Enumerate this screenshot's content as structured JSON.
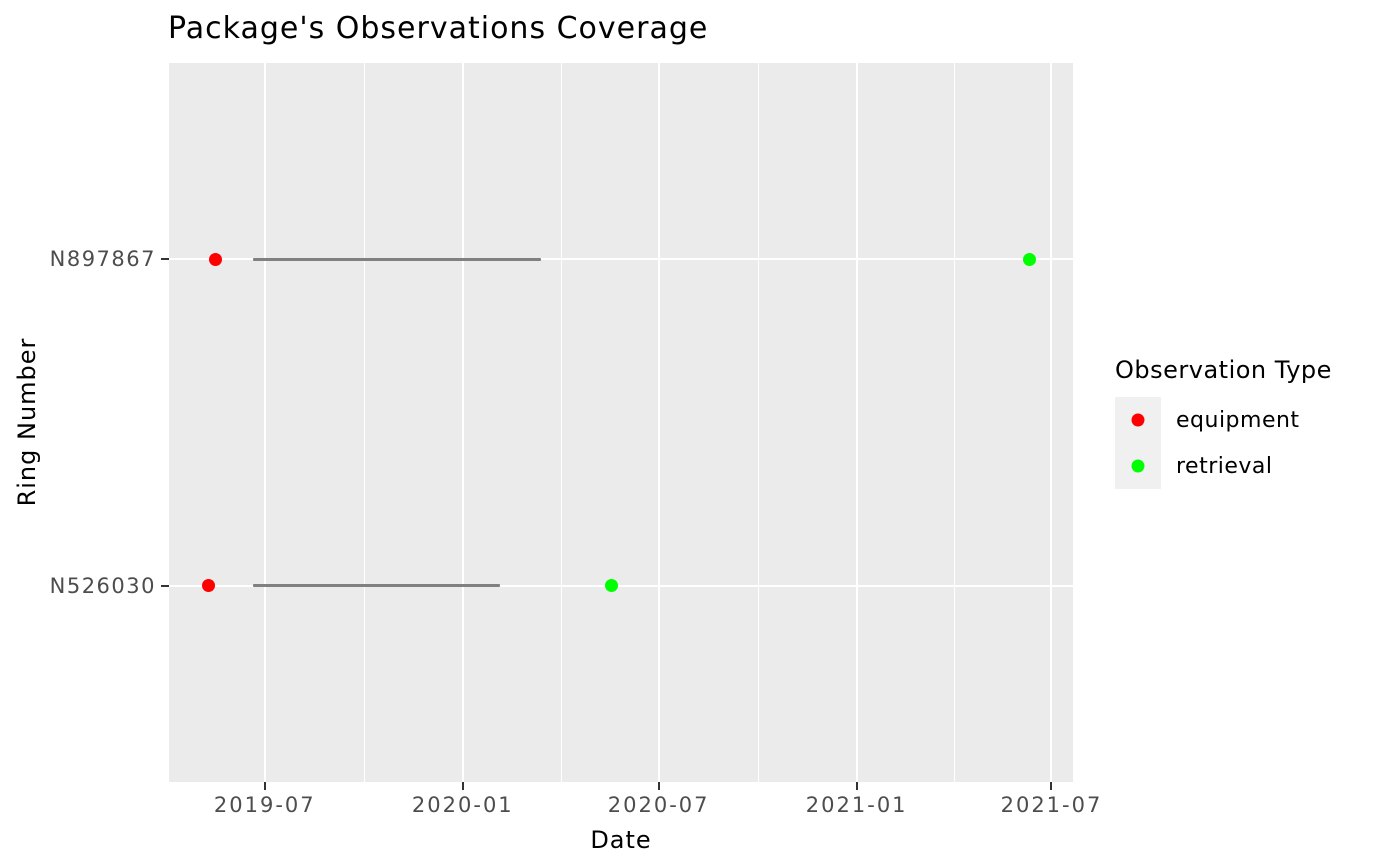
{
  "title": "Package's Observations Coverage",
  "x_axis": {
    "label": "Date"
  },
  "y_axis": {
    "label": "Ring Number"
  },
  "legend": {
    "title": "Observation Type",
    "items": [
      {
        "label": "equipment",
        "color": "#FF0000"
      },
      {
        "label": "retrieval",
        "color": "#00FF00"
      }
    ]
  },
  "colors": {
    "panel_background": "#EBEBEB",
    "gridline": "#FFFFFF",
    "tick_mark": "#333333",
    "tick_label": "#4D4D4D",
    "coverage_segment": "#808080",
    "equipment_point": "#FF0000",
    "retrieval_point": "#00FF00",
    "legend_key_background": "#F0F0F0"
  },
  "chart_data": {
    "type": "scatter",
    "title": "Package's Observations Coverage",
    "xlabel": "Date",
    "ylabel": "Ring Number",
    "categories": [
      "N897867",
      "N526030"
    ],
    "x_ticks": [
      {
        "label": "2019-07",
        "date": "2019-07-01"
      },
      {
        "label": "2020-01",
        "date": "2020-01-01"
      },
      {
        "label": "2020-07",
        "date": "2020-07-01"
      },
      {
        "label": "2021-01",
        "date": "2021-01-01"
      },
      {
        "label": "2021-07",
        "date": "2021-07-01"
      }
    ],
    "x_minor_gridlines": [
      "2019-10-01",
      "2020-04-01",
      "2020-10-01",
      "2021-04-01"
    ],
    "x_range": [
      "2019-04-03",
      "2021-07-21"
    ],
    "series": [
      {
        "name": "equipment",
        "color": "#FF0000",
        "points": [
          {
            "ring": "N897867",
            "date": "2019-05-16"
          },
          {
            "ring": "N526030",
            "date": "2019-05-10"
          }
        ]
      },
      {
        "name": "retrieval",
        "color": "#00FF00",
        "points": [
          {
            "ring": "N897867",
            "date": "2021-06-11"
          },
          {
            "ring": "N526030",
            "date": "2020-05-18"
          }
        ]
      }
    ],
    "coverage_segments": [
      {
        "ring": "N897867",
        "start": "2019-06-20",
        "end": "2020-03-14"
      },
      {
        "ring": "N526030",
        "start": "2019-06-20",
        "end": "2020-02-05"
      }
    ],
    "grid": true,
    "legend_position": "right"
  }
}
